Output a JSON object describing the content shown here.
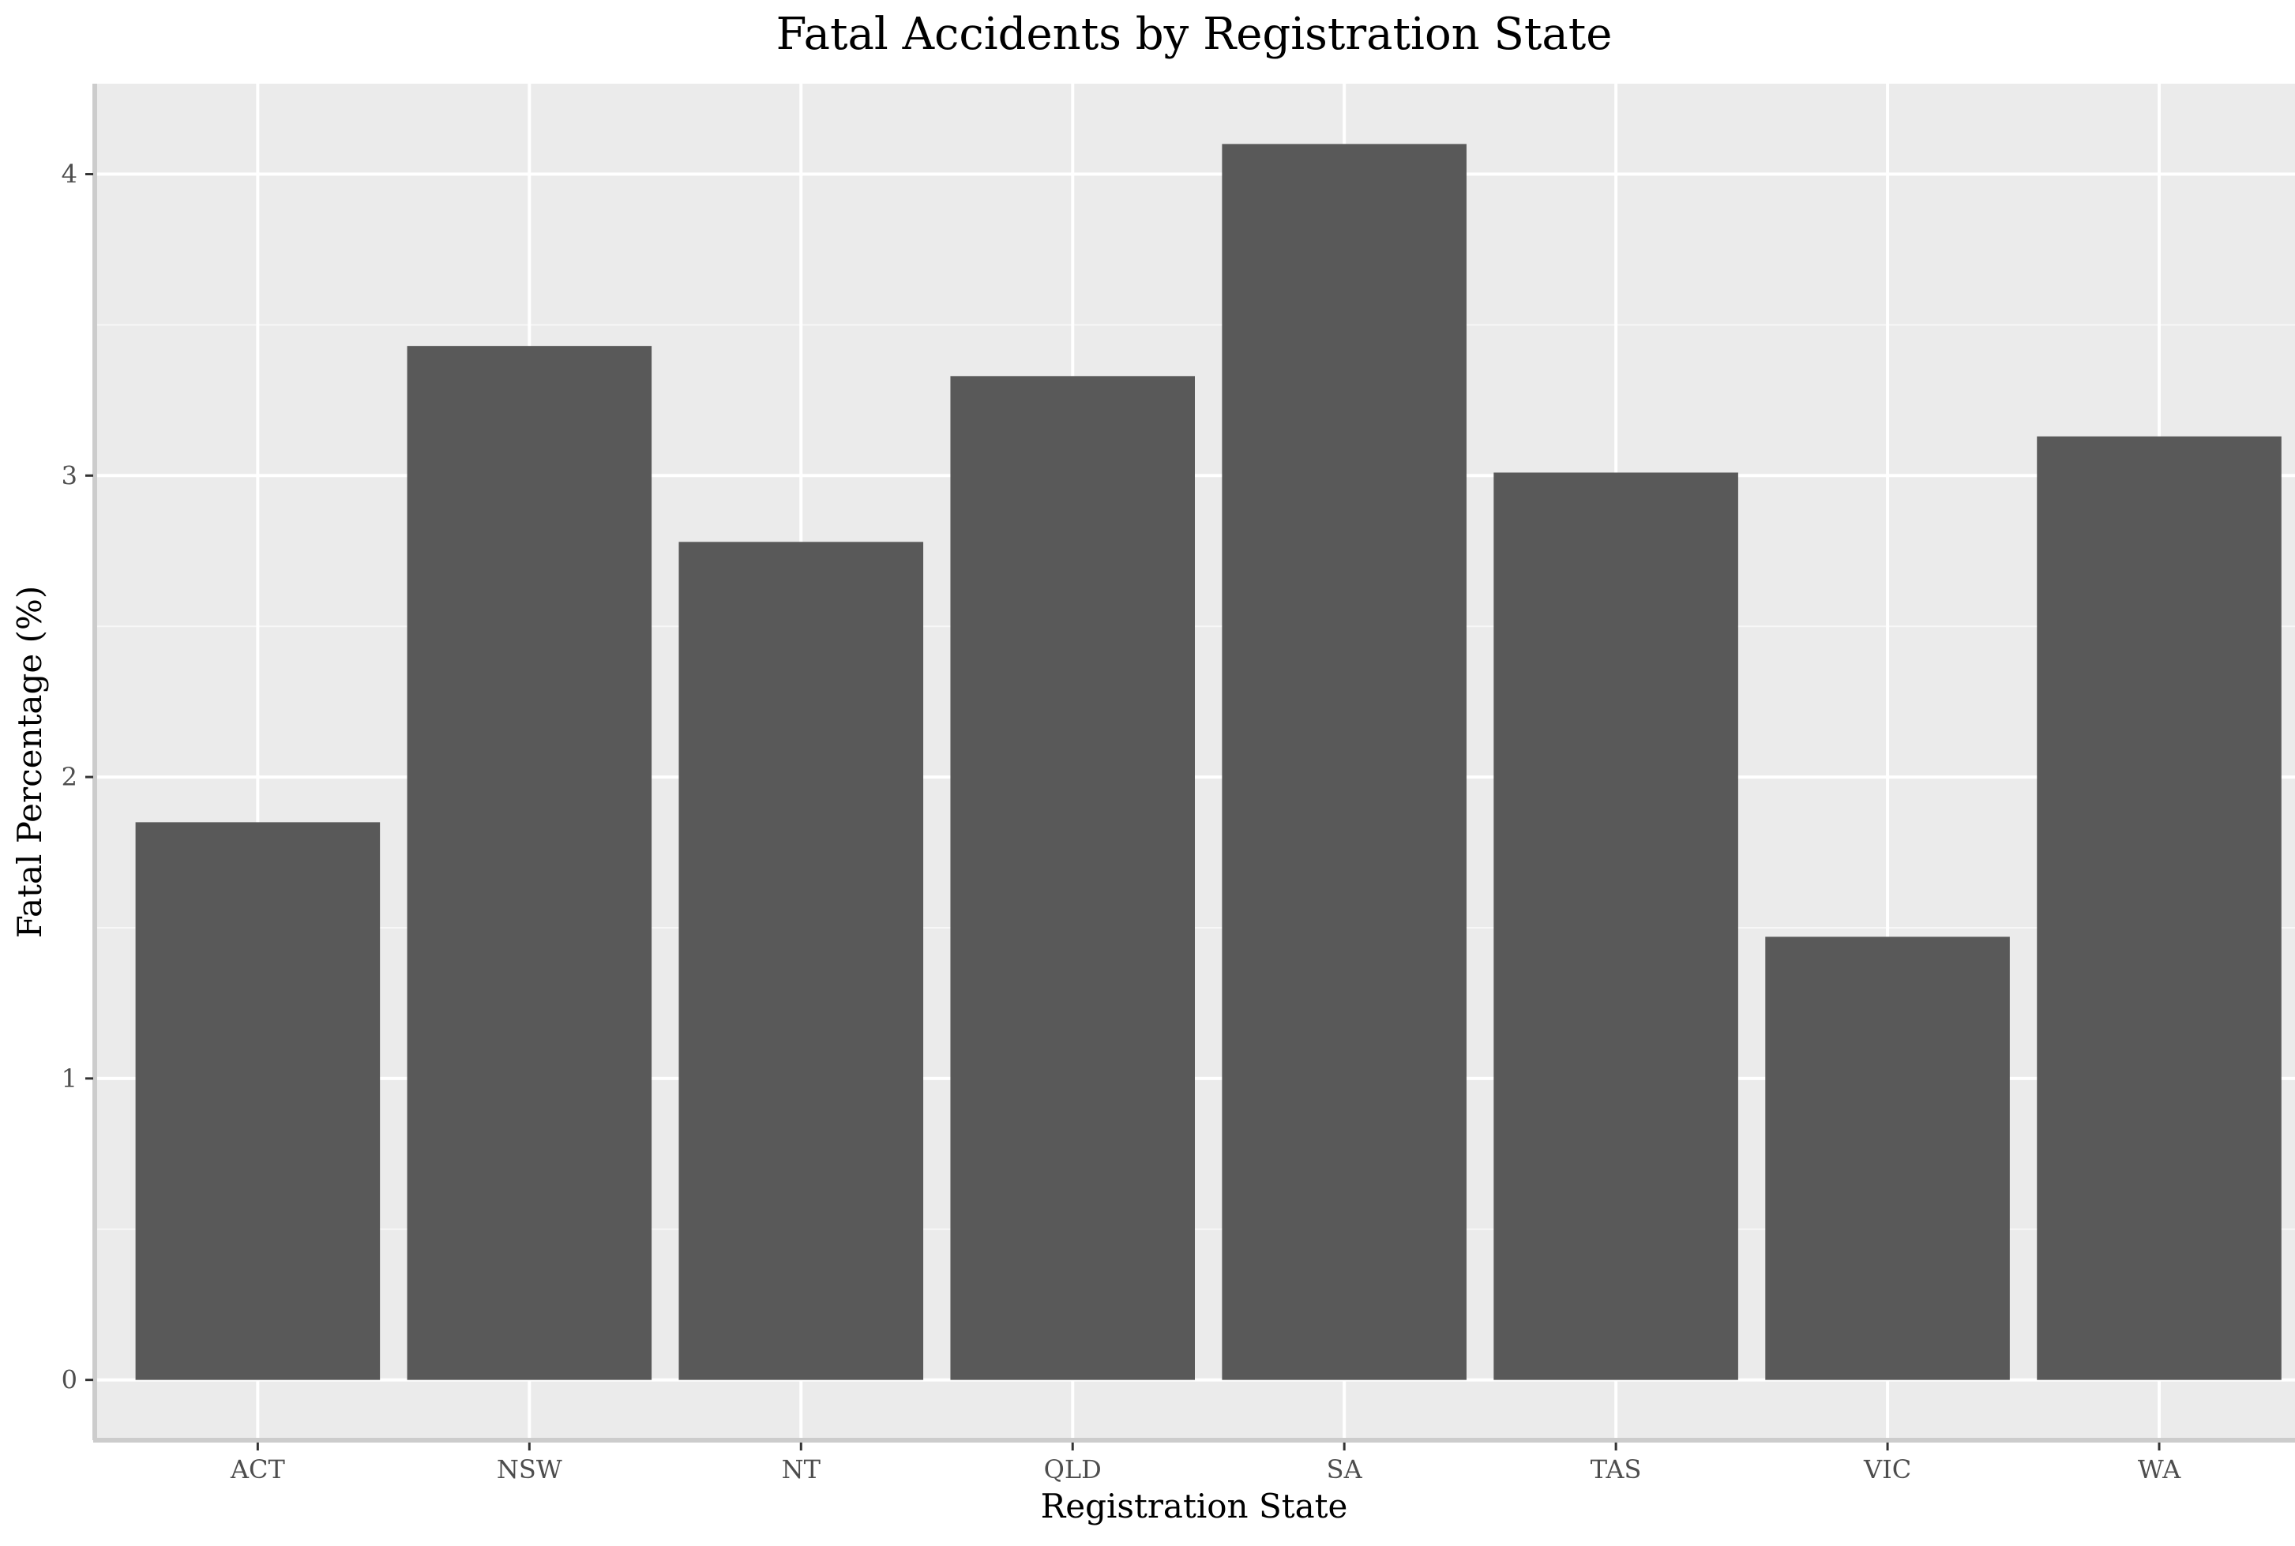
{
  "colors": {
    "panel_background": "#ebebeb",
    "grid_major": "#ffffff",
    "grid_minor": "#f7f7f7",
    "bar_fill": "#595959",
    "axis_line": "#cccccc",
    "tick_label": "#4d4d4d",
    "text": "#000000"
  },
  "chart_data": {
    "type": "bar",
    "title": "Fatal Accidents by Registration State",
    "xlabel": "Registration State",
    "ylabel": "Fatal Percentage (%)",
    "categories": [
      "ACT",
      "NSW",
      "NT",
      "QLD",
      "SA",
      "TAS",
      "VIC",
      "WA"
    ],
    "values": [
      1.85,
      3.43,
      2.78,
      3.33,
      4.1,
      3.01,
      1.47,
      3.13
    ],
    "ylim": [
      -0.2,
      4.3
    ],
    "yticks": [
      0,
      1,
      2,
      3,
      4
    ],
    "grid": true,
    "legend": "none"
  }
}
